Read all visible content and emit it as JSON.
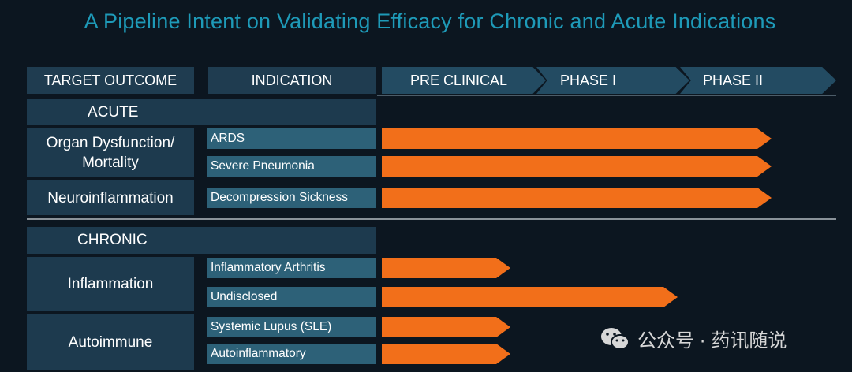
{
  "title": "A Pipeline Intent on Validating Efficacy for Chronic and Acute Indications",
  "headers": {
    "target_outcome": "TARGET OUTCOME",
    "indication": "INDICATION",
    "phases": [
      "PRE CLINICAL",
      "PHASE I",
      "PHASE II"
    ]
  },
  "acute": {
    "label": "ACUTE",
    "outcomes": [
      "Organ Dysfunction/\nMortality",
      "Neuroinflammation"
    ],
    "indications": [
      "ARDS",
      "Severe Pneumonia",
      "Decompression Sickness"
    ]
  },
  "chronic": {
    "label": "CHRONIC",
    "outcomes": [
      "Inflammation",
      "Autoimmune"
    ],
    "indications": [
      "Inflammatory Arthritis",
      "Undisclosed",
      "Systemic Lupus (SLE)",
      "Autoinflammatory"
    ]
  },
  "progress": {
    "phases_spanned": [
      "PHASE II",
      "PHASE II",
      "PHASE II",
      "PRE CLINICAL",
      "PHASE I",
      "PRE CLINICAL",
      "PRE CLINICAL"
    ],
    "fraction_of_track": [
      1.0,
      1.0,
      1.0,
      0.33,
      0.76,
      0.33,
      0.33
    ]
  },
  "watermark": "公众号 · 药讯随说",
  "colors": {
    "bar": "#f26f1a",
    "title": "#1e9ab8"
  }
}
